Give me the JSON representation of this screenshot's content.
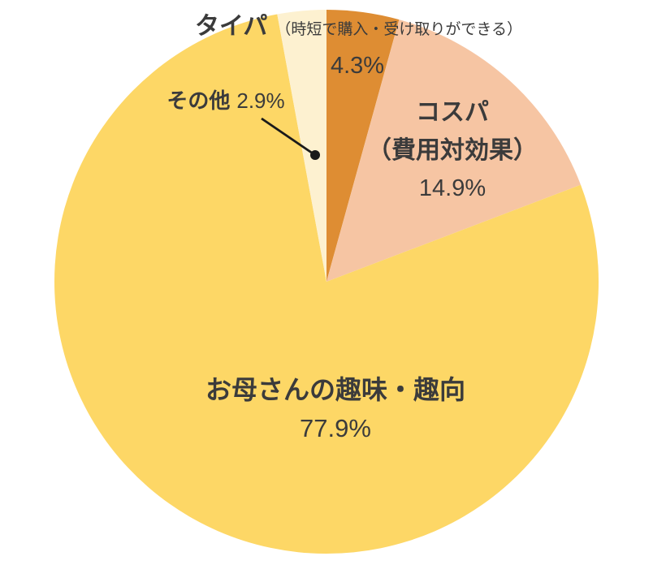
{
  "chart_data": {
    "type": "pie",
    "title": "",
    "unit": "%",
    "start_angle_deg": 0,
    "direction": "clockwise",
    "legend_position": "none",
    "labels_on_chart": true,
    "background": "#ffffff",
    "text_color": "#3b3b3b",
    "leader_line_color": "#1a1a1a",
    "slices": [
      {
        "id": "taipa",
        "label": "タイパ",
        "sublabel": "（時短で購入・受け取りができる）",
        "value": 4.3,
        "percent_label": "4.3%",
        "color": "#de8d33"
      },
      {
        "id": "cospa",
        "label": "コスパ",
        "label_line2": "（費用対効果）",
        "value": 14.9,
        "percent_label": "14.9%",
        "color": "#f6c5a3"
      },
      {
        "id": "mom-taste",
        "label": "お母さんの趣味・趣向",
        "value": 77.9,
        "percent_label": "77.9%",
        "color": "#fdd766"
      },
      {
        "id": "other",
        "label": "その他",
        "value": 2.9,
        "percent_label": "2.9%",
        "color": "#fdf1d0"
      }
    ]
  }
}
